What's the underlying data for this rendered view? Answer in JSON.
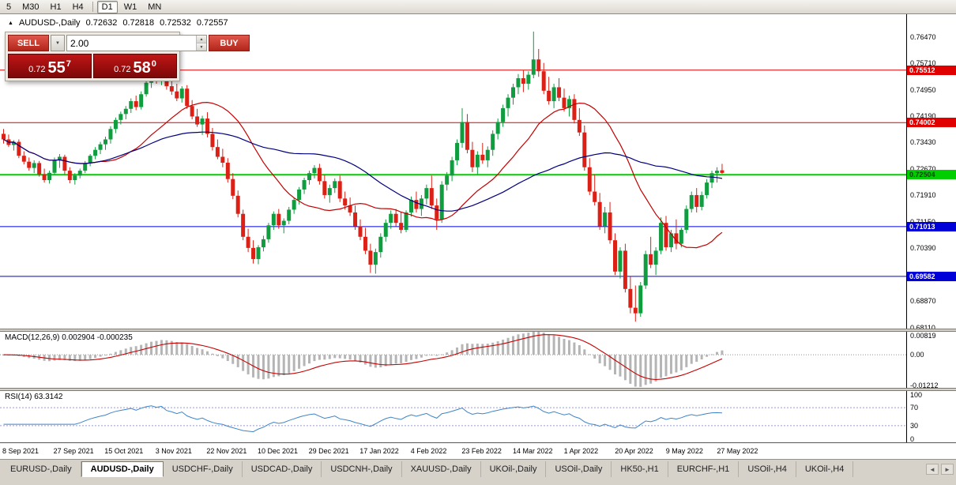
{
  "icons": {
    "title_marker": "▲",
    "dropdown_arrow": "▼",
    "spin_up": "▲",
    "spin_down": "▼",
    "scroll_left": "◄",
    "scroll_right": "►"
  },
  "toolbar": {
    "groups": [
      [
        "5",
        "M30",
        "H1",
        "H4"
      ],
      [
        "D1",
        "W1",
        "MN"
      ]
    ],
    "active": "D1"
  },
  "chart": {
    "symbol_label": "AUDUSD-,Daily",
    "ohlc": {
      "open": "0.72632",
      "high": "0.72818",
      "low": "0.72532",
      "close": "0.72557"
    },
    "trade_panel": {
      "sell_label": "SELL",
      "buy_label": "BUY",
      "volume": "2.00",
      "bid": {
        "prefix": "0.72",
        "big": "55",
        "pip": "7"
      },
      "ask": {
        "prefix": "0.72",
        "big": "58",
        "pip": "0"
      }
    }
  },
  "macd": {
    "label": "MACD(12,26,9) 0.002904 -0.000235",
    "axis": [
      "0.00819",
      "0.00",
      "-0.01212"
    ],
    "range": [
      -0.0125,
      0.0085
    ],
    "hist_color": "#b5b5b5",
    "signal_color": "#c40000"
  },
  "rsi": {
    "label": "RSI(14) 63.3142",
    "axis": [
      "100",
      "70",
      "30",
      "0"
    ],
    "period": 14,
    "levels": [
      70,
      30
    ],
    "color": "#3f84c6",
    "level_color": "#9a9ace"
  },
  "tabs": {
    "items": [
      "EURUSD-,Daily",
      "AUDUSD-,Daily",
      "USDCHF-,Daily",
      "USDCAD-,Daily",
      "USDCNH-,Daily",
      "XAUUSD-,Daily",
      "UKOil-,Daily",
      "USOil-,Daily",
      "HK50-,H1",
      "EURCHF-,H1",
      "USOil-,H4",
      "UKOil-,H4"
    ],
    "active_index": 1
  },
  "chart_data": {
    "type": "candlestick",
    "symbol": "AUDUSD",
    "timeframe": "Daily",
    "price_range": [
      0.6808,
      0.7712
    ],
    "spacing": 6.45,
    "colors": {
      "up": "#0f9d3f",
      "down": "#dd2015"
    },
    "y_ticks": [
      "0.76470",
      "0.75710",
      "0.74950",
      "0.74190",
      "0.73430",
      "0.72670",
      "0.71910",
      "0.71150",
      "0.70390",
      "0.69630",
      "0.68870",
      "0.68110"
    ],
    "x_labels": [
      "8 Sep 2021",
      "27 Sep 2021",
      "15 Oct 2021",
      "3 Nov 2021",
      "22 Nov 2021",
      "10 Dec 2021",
      "29 Dec 2021",
      "17 Jan 2022",
      "4 Feb 2022",
      "23 Feb 2022",
      "14 Mar 2022",
      "1 Apr 2022",
      "20 Apr 2022",
      "9 May 2022",
      "27 May 2022"
    ],
    "levels": [
      {
        "price": 0.75512,
        "label": "0.75512",
        "color": "#e00000",
        "text": "#ffffff",
        "width": 1
      },
      {
        "price": 0.74002,
        "label": "0.74002",
        "color": "#e00000",
        "text": "#ffffff",
        "width": 1
      },
      {
        "price": 0.72504,
        "label": "0.72504",
        "color": "#00ce00",
        "text": "#004400",
        "width": 2
      },
      {
        "price": 0.71013,
        "label": "0.71013",
        "color": "#0000d8",
        "text": "#ffffff",
        "width": 1
      },
      {
        "price": 0.69582,
        "label": "0.69582",
        "color": "#0000d8",
        "text": "#ffffff",
        "width": 1
      }
    ],
    "overlays": [
      {
        "name": "ma-fast",
        "period": 20,
        "color": "#c40000"
      },
      {
        "name": "ma-slow",
        "period": 45,
        "color": "#00007e"
      }
    ],
    "candles": [
      [
        0.7368,
        0.7382,
        0.734,
        0.7352
      ],
      [
        0.7352,
        0.7366,
        0.733,
        0.7336
      ],
      [
        0.7336,
        0.735,
        0.732,
        0.7345
      ],
      [
        0.7345,
        0.7352,
        0.7298,
        0.7305
      ],
      [
        0.7305,
        0.7318,
        0.728,
        0.7288
      ],
      [
        0.7288,
        0.73,
        0.7262,
        0.727
      ],
      [
        0.727,
        0.7292,
        0.7255,
        0.7284
      ],
      [
        0.7284,
        0.729,
        0.7245,
        0.7252
      ],
      [
        0.7252,
        0.7268,
        0.7228,
        0.7235
      ],
      [
        0.7235,
        0.7262,
        0.7225,
        0.7256
      ],
      [
        0.7256,
        0.73,
        0.725,
        0.7292
      ],
      [
        0.7292,
        0.731,
        0.727,
        0.7302
      ],
      [
        0.7302,
        0.7308,
        0.7252,
        0.7262
      ],
      [
        0.7262,
        0.7272,
        0.7226,
        0.7235
      ],
      [
        0.7235,
        0.7255,
        0.7222,
        0.7248
      ],
      [
        0.7248,
        0.7268,
        0.724,
        0.7262
      ],
      [
        0.7262,
        0.729,
        0.7255,
        0.7284
      ],
      [
        0.7284,
        0.731,
        0.7275,
        0.7305
      ],
      [
        0.7305,
        0.733,
        0.7295,
        0.7322
      ],
      [
        0.7322,
        0.7345,
        0.731,
        0.7338
      ],
      [
        0.7338,
        0.736,
        0.7322,
        0.7352
      ],
      [
        0.7352,
        0.739,
        0.734,
        0.7382
      ],
      [
        0.7382,
        0.7415,
        0.737,
        0.7408
      ],
      [
        0.7408,
        0.7432,
        0.7395,
        0.7425
      ],
      [
        0.7425,
        0.7448,
        0.741,
        0.744
      ],
      [
        0.744,
        0.747,
        0.7428,
        0.7462
      ],
      [
        0.7462,
        0.7478,
        0.7436,
        0.7445
      ],
      [
        0.7445,
        0.749,
        0.7438,
        0.7482
      ],
      [
        0.7482,
        0.7522,
        0.7475,
        0.7515
      ],
      [
        0.7515,
        0.7545,
        0.75,
        0.7538
      ],
      [
        0.7538,
        0.7556,
        0.7512,
        0.7525
      ],
      [
        0.7525,
        0.7552,
        0.7508,
        0.7546
      ],
      [
        0.7546,
        0.7555,
        0.7495,
        0.7505
      ],
      [
        0.7505,
        0.753,
        0.748,
        0.749
      ],
      [
        0.749,
        0.7512,
        0.7462,
        0.747
      ],
      [
        0.747,
        0.7505,
        0.7458,
        0.7498
      ],
      [
        0.7498,
        0.7508,
        0.744,
        0.7448
      ],
      [
        0.7448,
        0.7465,
        0.741,
        0.7418
      ],
      [
        0.7418,
        0.744,
        0.7388,
        0.7395
      ],
      [
        0.7395,
        0.742,
        0.7365,
        0.7412
      ],
      [
        0.7412,
        0.743,
        0.7358,
        0.7368
      ],
      [
        0.7368,
        0.7385,
        0.732,
        0.733
      ],
      [
        0.733,
        0.7352,
        0.7295,
        0.7302
      ],
      [
        0.7302,
        0.7325,
        0.7272,
        0.7285
      ],
      [
        0.7285,
        0.7298,
        0.7228,
        0.7238
      ],
      [
        0.7238,
        0.7255,
        0.718,
        0.719
      ],
      [
        0.719,
        0.7205,
        0.7128,
        0.7138
      ],
      [
        0.7138,
        0.715,
        0.7062,
        0.7072
      ],
      [
        0.7072,
        0.7095,
        0.7028,
        0.704
      ],
      [
        0.704,
        0.7062,
        0.6995,
        0.7008
      ],
      [
        0.7008,
        0.7048,
        0.6993,
        0.7042
      ],
      [
        0.7042,
        0.7075,
        0.703,
        0.7065
      ],
      [
        0.7065,
        0.7112,
        0.7055,
        0.7105
      ],
      [
        0.7105,
        0.7145,
        0.7092,
        0.7138
      ],
      [
        0.7138,
        0.7152,
        0.7095,
        0.7105
      ],
      [
        0.7105,
        0.7125,
        0.7082,
        0.7118
      ],
      [
        0.7118,
        0.7158,
        0.7108,
        0.715
      ],
      [
        0.715,
        0.7185,
        0.7138,
        0.7178
      ],
      [
        0.7178,
        0.7215,
        0.7165,
        0.7208
      ],
      [
        0.7208,
        0.7242,
        0.7195,
        0.7235
      ],
      [
        0.7235,
        0.7262,
        0.7222,
        0.7255
      ],
      [
        0.7255,
        0.7278,
        0.724,
        0.727
      ],
      [
        0.727,
        0.7282,
        0.7222,
        0.7232
      ],
      [
        0.7232,
        0.725,
        0.7182,
        0.7192
      ],
      [
        0.7192,
        0.7222,
        0.717,
        0.7212
      ],
      [
        0.7212,
        0.724,
        0.7198,
        0.7232
      ],
      [
        0.7232,
        0.7248,
        0.7172,
        0.7182
      ],
      [
        0.7182,
        0.7202,
        0.715,
        0.7162
      ],
      [
        0.7162,
        0.7185,
        0.7132,
        0.7142
      ],
      [
        0.7142,
        0.7162,
        0.7092,
        0.7102
      ],
      [
        0.7102,
        0.7122,
        0.7062,
        0.7072
      ],
      [
        0.7072,
        0.7098,
        0.7022,
        0.7032
      ],
      [
        0.7032,
        0.7052,
        0.6968,
        0.6992
      ],
      [
        0.6992,
        0.7038,
        0.6966,
        0.7028
      ],
      [
        0.7028,
        0.7082,
        0.7012,
        0.7072
      ],
      [
        0.7072,
        0.7122,
        0.7058,
        0.7112
      ],
      [
        0.7112,
        0.7148,
        0.7095,
        0.7138
      ],
      [
        0.7138,
        0.7152,
        0.7102,
        0.7112
      ],
      [
        0.7112,
        0.7142,
        0.7082,
        0.7092
      ],
      [
        0.7092,
        0.7148,
        0.7085,
        0.7142
      ],
      [
        0.7142,
        0.7188,
        0.713,
        0.7178
      ],
      [
        0.7178,
        0.7202,
        0.7142,
        0.7152
      ],
      [
        0.7152,
        0.7192,
        0.7132,
        0.7182
      ],
      [
        0.7182,
        0.7222,
        0.7165,
        0.7212
      ],
      [
        0.7212,
        0.7248,
        0.7152,
        0.7162
      ],
      [
        0.7162,
        0.7182,
        0.7092,
        0.7122
      ],
      [
        0.7122,
        0.7232,
        0.7112,
        0.7222
      ],
      [
        0.7222,
        0.7258,
        0.7205,
        0.7248
      ],
      [
        0.7248,
        0.7302,
        0.7232,
        0.7292
      ],
      [
        0.7292,
        0.7352,
        0.7278,
        0.7342
      ],
      [
        0.7342,
        0.7442,
        0.7328,
        0.7402
      ],
      [
        0.7402,
        0.7425,
        0.7312,
        0.7322
      ],
      [
        0.7322,
        0.7345,
        0.7258,
        0.7272
      ],
      [
        0.7272,
        0.7318,
        0.7252,
        0.7308
      ],
      [
        0.7308,
        0.7342,
        0.7282,
        0.7292
      ],
      [
        0.7292,
        0.7332,
        0.7272,
        0.7322
      ],
      [
        0.7322,
        0.7378,
        0.7305,
        0.7368
      ],
      [
        0.7368,
        0.7412,
        0.7352,
        0.7402
      ],
      [
        0.7402,
        0.7452,
        0.7388,
        0.7442
      ],
      [
        0.7442,
        0.7482,
        0.7418,
        0.7472
      ],
      [
        0.7472,
        0.7512,
        0.7452,
        0.7502
      ],
      [
        0.7502,
        0.754,
        0.7482,
        0.7528
      ],
      [
        0.7528,
        0.7552,
        0.7488,
        0.7512
      ],
      [
        0.7512,
        0.7548,
        0.7495,
        0.7538
      ],
      [
        0.7538,
        0.7662,
        0.7528,
        0.7582
      ],
      [
        0.7582,
        0.7612,
        0.7532,
        0.7548
      ],
      [
        0.7548,
        0.7572,
        0.7482,
        0.7492
      ],
      [
        0.7492,
        0.7532,
        0.7452,
        0.7462
      ],
      [
        0.7462,
        0.7512,
        0.7442,
        0.7502
      ],
      [
        0.7502,
        0.7528,
        0.7462,
        0.7472
      ],
      [
        0.7472,
        0.7498,
        0.7432,
        0.7442
      ],
      [
        0.7442,
        0.7478,
        0.7418,
        0.7468
      ],
      [
        0.7468,
        0.7482,
        0.7398,
        0.7408
      ],
      [
        0.7408,
        0.7442,
        0.7362,
        0.7372
      ],
      [
        0.7372,
        0.7392,
        0.7262,
        0.7272
      ],
      [
        0.7272,
        0.7298,
        0.7192,
        0.7202
      ],
      [
        0.7202,
        0.7252,
        0.7162,
        0.7172
      ],
      [
        0.7172,
        0.7198,
        0.7092,
        0.7102
      ],
      [
        0.7102,
        0.7158,
        0.7082,
        0.7142
      ],
      [
        0.7142,
        0.7172,
        0.7052,
        0.7062
      ],
      [
        0.7062,
        0.7082,
        0.6962,
        0.6972
      ],
      [
        0.6972,
        0.7042,
        0.6952,
        0.7032
      ],
      [
        0.7032,
        0.7052,
        0.6912,
        0.6922
      ],
      [
        0.6922,
        0.6958,
        0.6852,
        0.6868
      ],
      [
        0.6868,
        0.6932,
        0.6828,
        0.6852
      ],
      [
        0.6852,
        0.6942,
        0.6842,
        0.6932
      ],
      [
        0.6932,
        0.7032,
        0.6922,
        0.7022
      ],
      [
        0.7022,
        0.7072,
        0.6982,
        0.6992
      ],
      [
        0.6992,
        0.7042,
        0.6962,
        0.7032
      ],
      [
        0.7032,
        0.7128,
        0.7022,
        0.7112
      ],
      [
        0.7112,
        0.7132,
        0.7032,
        0.7042
      ],
      [
        0.7042,
        0.7092,
        0.7028,
        0.7082
      ],
      [
        0.7082,
        0.7122,
        0.7036,
        0.7052
      ],
      [
        0.7052,
        0.7098,
        0.7042,
        0.7092
      ],
      [
        0.7092,
        0.7162,
        0.7082,
        0.7152
      ],
      [
        0.7152,
        0.7202,
        0.7142,
        0.7192
      ],
      [
        0.7192,
        0.7212,
        0.7142,
        0.7158
      ],
      [
        0.7158,
        0.7202,
        0.7148,
        0.7192
      ],
      [
        0.7192,
        0.7238,
        0.7182,
        0.7228
      ],
      [
        0.7228,
        0.7262,
        0.7212,
        0.7255
      ],
      [
        0.7255,
        0.7272,
        0.7228,
        0.7262
      ],
      [
        0.72632,
        0.72818,
        0.72532,
        0.72557
      ]
    ]
  }
}
